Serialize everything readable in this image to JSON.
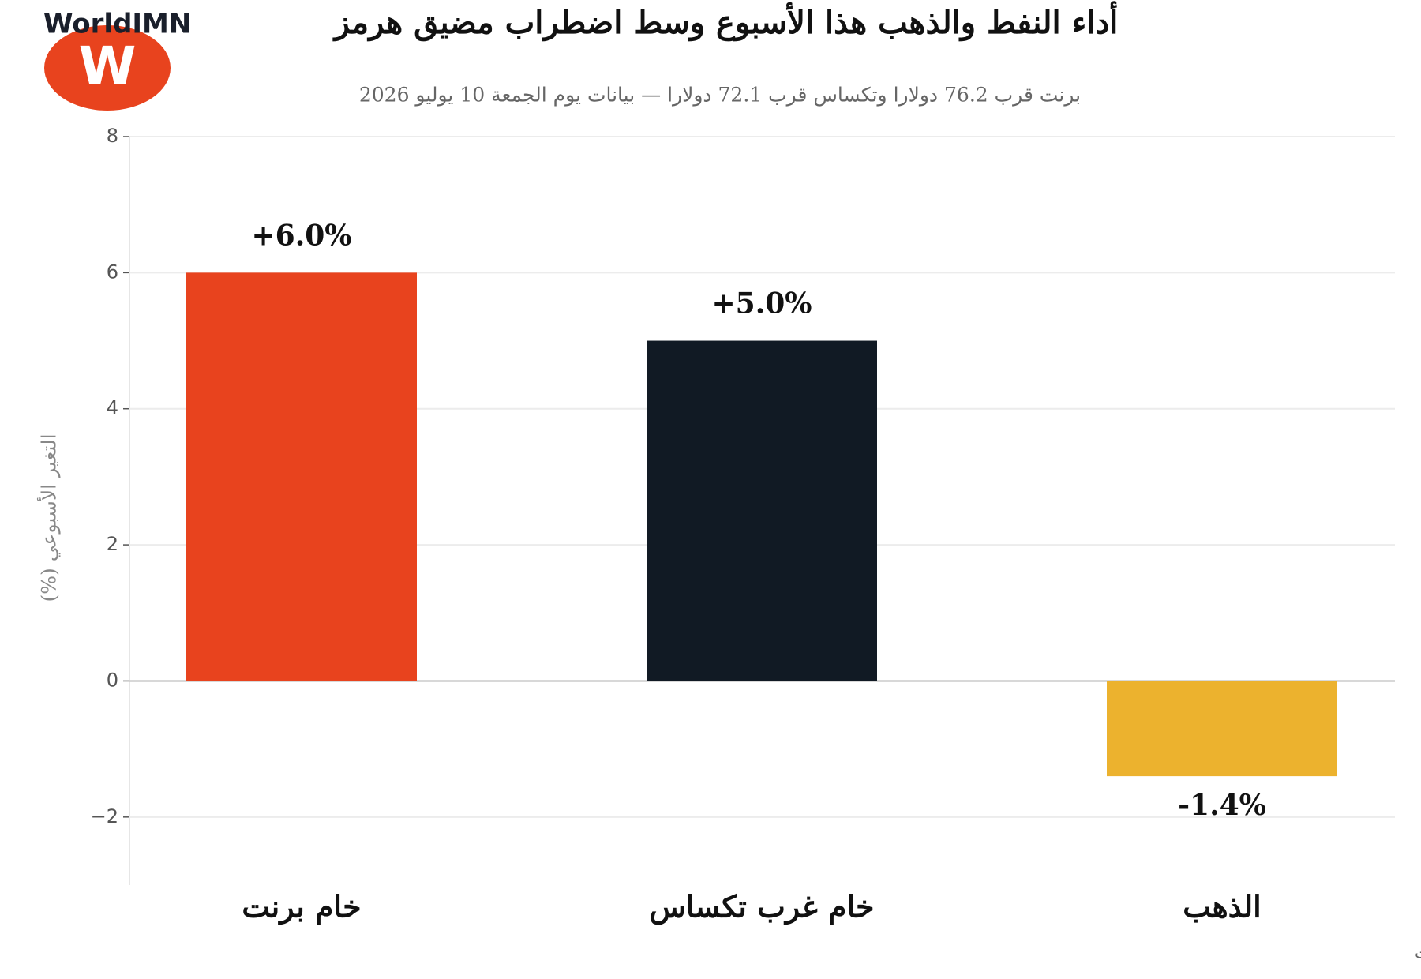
{
  "logo": {
    "name": "WorldIMN",
    "letter": "W"
  },
  "chart_data": {
    "type": "bar",
    "title": "أداء النفط والذهب هذا الأسبوع وسط اضطراب مضيق هرمز",
    "subtitle": "برنت قرب 76.2 دولارا وتكساس قرب 72.1 دولارا — بيانات يوم الجمعة 10 يوليو 2026",
    "y_label": "التغير الأسبوعي (%)",
    "categories": [
      "خام برنت",
      "خام غرب تكساس",
      "الذهب"
    ],
    "values": [
      6.0,
      5.0,
      -1.4
    ],
    "value_labels": [
      "+6.0%",
      "+5.0%",
      "-1.4%"
    ],
    "colors": [
      "#e8431e",
      "#111a24",
      "#ecb22e"
    ],
    "ylim": [
      -3,
      8
    ],
    "yticks": [
      {
        "value": -2,
        "label": "−2"
      },
      0,
      2,
      4,
      6,
      8
    ],
    "grid": true,
    "source": "المصدر: رويترز وسي إن بي سي — عبر الجزيرة نت"
  }
}
